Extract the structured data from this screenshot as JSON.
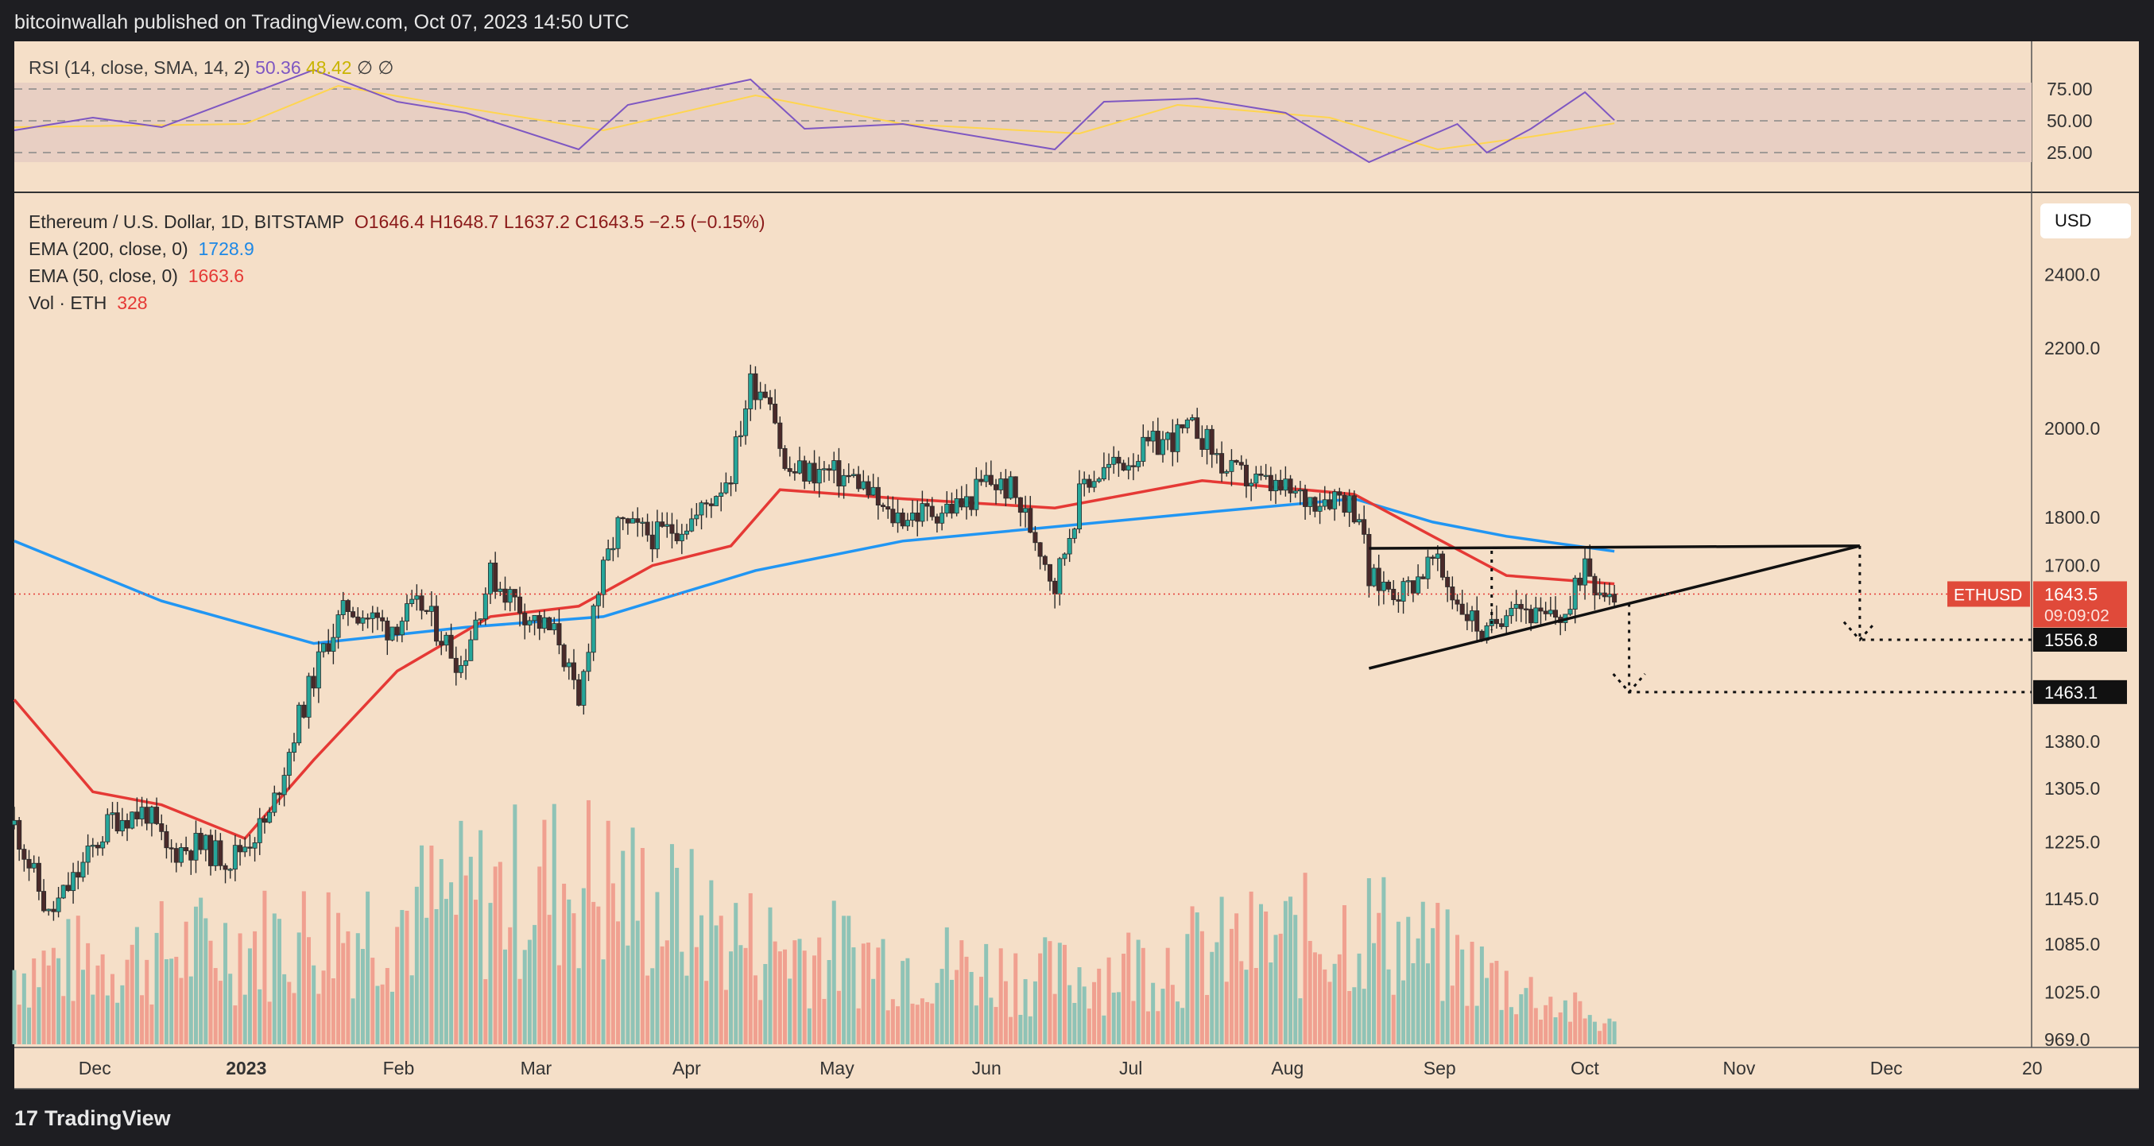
{
  "header": {
    "publisher_line": "bitcoinwallah published on TradingView.com, Oct 07, 2023 14:50 UTC"
  },
  "rsi_legend": {
    "label": "RSI (14, close, SMA, 14, 2)",
    "rsi_value": "50.36",
    "sma_value": "48.42",
    "extra": "∅  ∅"
  },
  "legend": {
    "symbol": "Ethereum / U.S. Dollar, 1D, BITSTAMP",
    "ohlc": "O1646.4  H1648.7  L1637.2  C1643.5  −2.5 (−0.15%)",
    "ema200_label": "EMA (200, close, 0)",
    "ema200_value": "1728.9",
    "ema50_label": "EMA (50, close, 0)",
    "ema50_value": "1663.6",
    "vol_label": "Vol · ETH",
    "vol_value": "328"
  },
  "currency_button": "USD",
  "price_axis_ticks": [
    "2400.0",
    "2200.0",
    "2000.0",
    "1800.0",
    "1700.0",
    "1380.0",
    "1305.0",
    "1225.0",
    "1145.0",
    "1085.0",
    "1025.0",
    "969.0"
  ],
  "rsi_axis_ticks": [
    "75.00",
    "50.00",
    "25.00"
  ],
  "time_axis_labels": [
    "Dec",
    "2023",
    "Feb",
    "Mar",
    "Apr",
    "May",
    "Jun",
    "Jul",
    "Aug",
    "Sep",
    "Oct",
    "Nov",
    "Dec",
    "20"
  ],
  "last_price_tag": {
    "symbol": "ETHUSD",
    "price": "1643.5",
    "countdown": "09:09:02"
  },
  "target_tags": [
    "1556.8",
    "1463.1"
  ],
  "footer": {
    "brand": "TradingView",
    "logo": "17"
  },
  "colors": {
    "background": "#f5dfc8",
    "up": "#26a69a",
    "down": "#ef5350",
    "ema200": "#2196f3",
    "ema50": "#e53935",
    "rsi": "#7e57c2",
    "rsi_sma": "#ffd54f"
  },
  "chart_data": {
    "type": "candlestick",
    "title": "Ethereum / U.S. Dollar, 1D, BITSTAMP",
    "x_range": [
      "2022-11-15",
      "2023-12-31"
    ],
    "y_scale": "log",
    "price_path": [
      [
        "2022-11-15",
        1250
      ],
      [
        "2022-11-22",
        1120
      ],
      [
        "2022-11-28",
        1180
      ],
      [
        "2022-12-05",
        1260
      ],
      [
        "2022-12-12",
        1270
      ],
      [
        "2022-12-16",
        1210
      ],
      [
        "2022-12-22",
        1220
      ],
      [
        "2022-12-29",
        1200
      ],
      [
        "2023-01-06",
        1260
      ],
      [
        "2023-01-12",
        1420
      ],
      [
        "2023-01-18",
        1560
      ],
      [
        "2023-01-22",
        1620
      ],
      [
        "2023-01-30",
        1580
      ],
      [
        "2023-02-06",
        1620
      ],
      [
        "2023-02-14",
        1510
      ],
      [
        "2023-02-20",
        1680
      ],
      [
        "2023-02-28",
        1600
      ],
      [
        "2023-03-06",
        1560
      ],
      [
        "2023-03-10",
        1430
      ],
      [
        "2023-03-13",
        1620
      ],
      [
        "2023-03-18",
        1780
      ],
      [
        "2023-03-26",
        1760
      ],
      [
        "2023-04-03",
        1800
      ],
      [
        "2023-04-10",
        1900
      ],
      [
        "2023-04-14",
        2110
      ],
      [
        "2023-04-18",
        2090
      ],
      [
        "2023-04-21",
        1900
      ],
      [
        "2023-04-29",
        1900
      ],
      [
        "2023-05-06",
        1880
      ],
      [
        "2023-05-12",
        1800
      ],
      [
        "2023-05-20",
        1810
      ],
      [
        "2023-05-28",
        1830
      ],
      [
        "2023-06-01",
        1880
      ],
      [
        "2023-06-06",
        1860
      ],
      [
        "2023-06-12",
        1740
      ],
      [
        "2023-06-15",
        1660
      ],
      [
        "2023-06-21",
        1880
      ],
      [
        "2023-06-30",
        1930
      ],
      [
        "2023-07-05",
        1960
      ],
      [
        "2023-07-14",
        2000
      ],
      [
        "2023-07-20",
        1900
      ],
      [
        "2023-07-28",
        1870
      ],
      [
        "2023-08-05",
        1840
      ],
      [
        "2023-08-12",
        1850
      ],
      [
        "2023-08-16",
        1810
      ],
      [
        "2023-08-18",
        1670
      ],
      [
        "2023-08-25",
        1650
      ],
      [
        "2023-08-31",
        1710
      ],
      [
        "2023-09-05",
        1630
      ],
      [
        "2023-09-11",
        1560
      ],
      [
        "2023-09-16",
        1640
      ],
      [
        "2023-09-22",
        1590
      ],
      [
        "2023-09-28",
        1610
      ],
      [
        "2023-10-01",
        1720
      ],
      [
        "2023-10-03",
        1670
      ],
      [
        "2023-10-07",
        1643.5
      ]
    ],
    "ema200": [
      [
        "2022-11-15",
        1750
      ],
      [
        "2022-12-15",
        1630
      ],
      [
        "2023-01-15",
        1550
      ],
      [
        "2023-02-15",
        1580
      ],
      [
        "2023-03-15",
        1600
      ],
      [
        "2023-04-15",
        1690
      ],
      [
        "2023-05-15",
        1750
      ],
      [
        "2023-06-15",
        1780
      ],
      [
        "2023-07-15",
        1810
      ],
      [
        "2023-08-15",
        1840
      ],
      [
        "2023-08-31",
        1790
      ],
      [
        "2023-09-15",
        1760
      ],
      [
        "2023-10-07",
        1728.9
      ]
    ],
    "ema50": [
      [
        "2022-11-15",
        1450
      ],
      [
        "2022-12-01",
        1300
      ],
      [
        "2022-12-15",
        1280
      ],
      [
        "2023-01-01",
        1230
      ],
      [
        "2023-01-15",
        1350
      ],
      [
        "2023-02-01",
        1500
      ],
      [
        "2023-02-20",
        1600
      ],
      [
        "2023-03-10",
        1620
      ],
      [
        "2023-03-25",
        1700
      ],
      [
        "2023-04-10",
        1740
      ],
      [
        "2023-04-20",
        1860
      ],
      [
        "2023-05-15",
        1840
      ],
      [
        "2023-06-15",
        1820
      ],
      [
        "2023-07-15",
        1880
      ],
      [
        "2023-08-15",
        1850
      ],
      [
        "2023-08-31",
        1760
      ],
      [
        "2023-09-15",
        1680
      ],
      [
        "2023-10-07",
        1663.6
      ]
    ],
    "rsi_path": [
      [
        "2022-11-15",
        44
      ],
      [
        "2022-12-01",
        52
      ],
      [
        "2022-12-15",
        46
      ],
      [
        "2023-01-15",
        82
      ],
      [
        "2023-02-01",
        62
      ],
      [
        "2023-02-15",
        55
      ],
      [
        "2023-03-10",
        32
      ],
      [
        "2023-03-20",
        60
      ],
      [
        "2023-04-14",
        76
      ],
      [
        "2023-04-25",
        45
      ],
      [
        "2023-05-15",
        48
      ],
      [
        "2023-06-15",
        32
      ],
      [
        "2023-06-25",
        62
      ],
      [
        "2023-07-14",
        64
      ],
      [
        "2023-08-01",
        55
      ],
      [
        "2023-08-18",
        24
      ],
      [
        "2023-09-05",
        48
      ],
      [
        "2023-09-11",
        30
      ],
      [
        "2023-09-20",
        45
      ],
      [
        "2023-10-01",
        68
      ],
      [
        "2023-10-07",
        50.36
      ]
    ],
    "rsi_sma_path": [
      [
        "2022-11-15",
        46
      ],
      [
        "2023-01-01",
        48
      ],
      [
        "2023-01-20",
        72
      ],
      [
        "2023-02-15",
        58
      ],
      [
        "2023-03-15",
        44
      ],
      [
        "2023-04-15",
        66
      ],
      [
        "2023-05-15",
        48
      ],
      [
        "2023-06-20",
        42
      ],
      [
        "2023-07-10",
        60
      ],
      [
        "2023-08-10",
        52
      ],
      [
        "2023-09-01",
        32
      ],
      [
        "2023-09-20",
        40
      ],
      [
        "2023-10-07",
        48.42
      ]
    ],
    "volume_path": [
      [
        "2022-11-15",
        90
      ],
      [
        "2023-01-15",
        130
      ],
      [
        "2023-03-10",
        200
      ],
      [
        "2023-04-15",
        120
      ],
      [
        "2023-06-15",
        80
      ],
      [
        "2023-08-18",
        140
      ],
      [
        "2023-10-07",
        20
      ]
    ],
    "trendlines": {
      "resistance": [
        [
          "2023-08-18",
          1735
        ],
        [
          "2023-11-26",
          1740
        ]
      ],
      "support": [
        [
          "2023-08-18",
          1510
        ],
        [
          "2023-11-26",
          1740
        ]
      ]
    },
    "targets": [
      1556.8,
      1463.1
    ],
    "current_price": 1643.5
  }
}
